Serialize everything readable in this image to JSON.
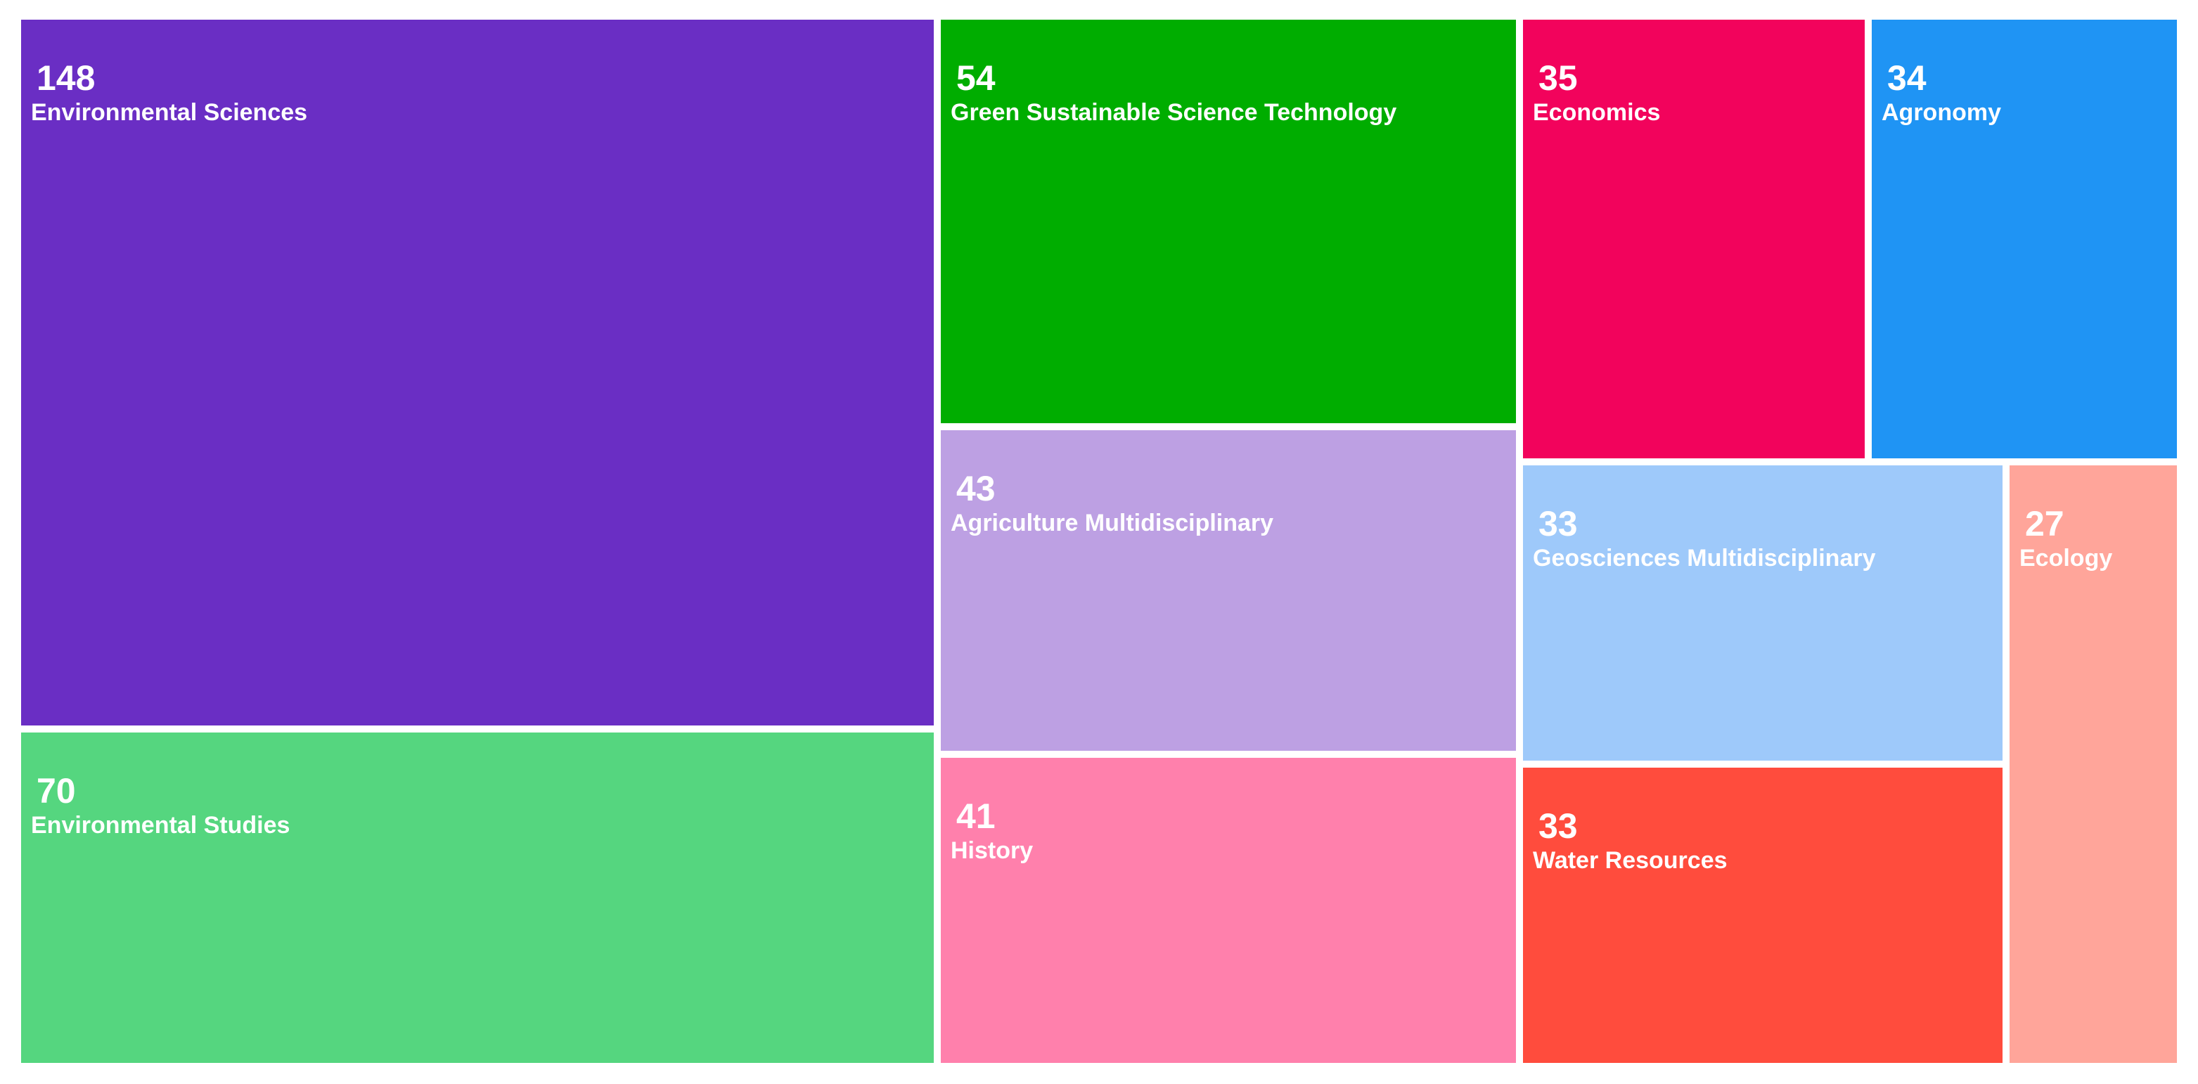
{
  "chart_data": {
    "type": "treemap",
    "title": "",
    "items": [
      {
        "label": "Environmental Sciences",
        "value": 148,
        "color": "#6a2ec4"
      },
      {
        "label": "Environmental Studies",
        "value": 70,
        "color": "#55d67f"
      },
      {
        "label": "Green Sustainable Science Technology",
        "value": 54,
        "color": "#00ad00"
      },
      {
        "label": "Agriculture Multidisciplinary",
        "value": 43,
        "color": "#bda0e3"
      },
      {
        "label": "History",
        "value": 41,
        "color": "#ff80ac"
      },
      {
        "label": "Economics",
        "value": 35,
        "color": "#f2035c"
      },
      {
        "label": "Agronomy",
        "value": 34,
        "color": "#1f94f4"
      },
      {
        "label": "Geosciences Multidisciplinary",
        "value": 33,
        "color": "#9ec9fa"
      },
      {
        "label": "Water Resources",
        "value": 33,
        "color": "#ff4c3d"
      },
      {
        "label": "Ecology",
        "value": 27,
        "color": "#ffa59a"
      }
    ]
  }
}
